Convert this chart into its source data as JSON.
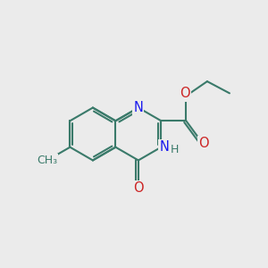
{
  "bg_color": "#ebebeb",
  "bond_color": "#3a7a6a",
  "bond_width": 1.5,
  "atom_colors": {
    "N": "#1a1aee",
    "O": "#cc2222",
    "C": "#3a7a6a",
    "H": "#3a7a6a"
  },
  "font_size": 10.5,
  "L": 1.0
}
